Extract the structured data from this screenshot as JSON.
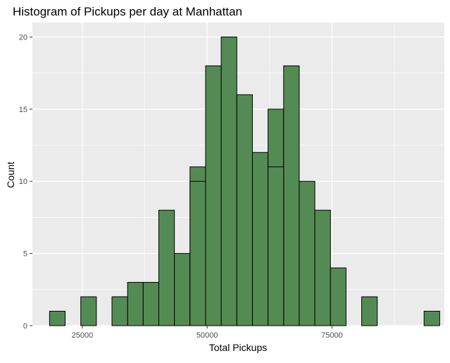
{
  "chart_data": {
    "type": "bar",
    "title": "Histogram of Pickups per day at Manhattan",
    "xlabel": "Total Pickups",
    "ylabel": "Count",
    "bin_width": 3125,
    "bin_centers": [
      20000,
      23125,
      26250,
      29375,
      32500,
      35625,
      38750,
      41875,
      45000,
      48125,
      51250,
      54375,
      57500,
      60625,
      63750,
      66875,
      70000,
      73125,
      76250,
      79375,
      82500,
      85625,
      88750,
      91875,
      95000
    ],
    "counts": [
      1,
      0,
      2,
      0,
      2,
      3,
      3,
      8,
      5,
      11,
      18,
      20,
      16,
      12,
      15,
      18,
      10,
      8,
      4,
      0,
      2,
      0,
      0,
      0,
      1
    ],
    "extra_bins": [
      {
        "x": 32500,
        "count": 2
      },
      {
        "x": 48125,
        "count": 10
      },
      {
        "x": 63750,
        "count": 11
      }
    ],
    "xlim": [
      15000,
      97500
    ],
    "ylim": [
      0,
      21
    ],
    "x_ticks": [
      25000,
      50000,
      75000
    ],
    "x_tick_labels": [
      "25000",
      "50000",
      "75000"
    ],
    "y_ticks": [
      0,
      5,
      10,
      15,
      20
    ],
    "y_tick_labels": [
      "0",
      "5",
      "10",
      "15",
      "20"
    ],
    "grid": true,
    "colors": {
      "panel_background": "#EBEBEB",
      "grid": "#FFFFFF",
      "bar_fill": "#548B54",
      "bar_stroke": "#000000",
      "text": "#000000",
      "tick_text": "#4D4D4D"
    }
  }
}
